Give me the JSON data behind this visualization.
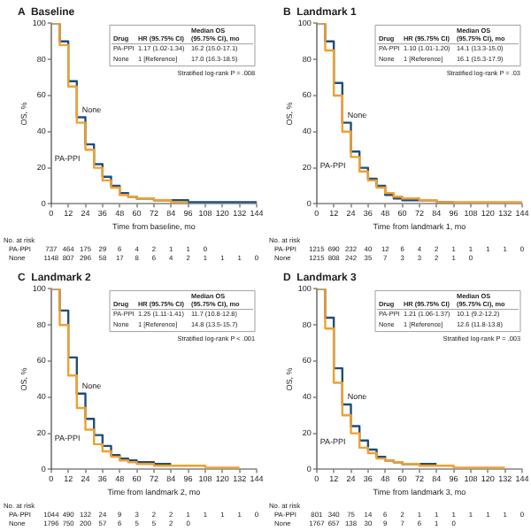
{
  "chart_data": [
    {
      "type": "step",
      "title": "A  Baseline",
      "xlabel": "Time from baseline, mo",
      "ylabel": "OS, %",
      "xlim": [
        0,
        144
      ],
      "xticks": [
        0,
        12,
        24,
        36,
        48,
        60,
        72,
        84,
        96,
        108,
        120,
        132,
        144
      ],
      "ylim": [
        0,
        100
      ],
      "yticks": [
        0,
        20,
        40,
        60,
        80,
        100
      ],
      "legend": false,
      "grid": false,
      "series": [
        {
          "name": "PA-PPI",
          "color": "#f0a030",
          "x": [
            0,
            6,
            12,
            18,
            24,
            30,
            36,
            42,
            48,
            54,
            60,
            72,
            84,
            96
          ],
          "values": [
            100,
            88,
            65,
            45,
            30,
            20,
            13,
            9,
            5,
            4,
            3,
            2,
            1,
            1
          ]
        },
        {
          "name": "None",
          "color": "#1f4e79",
          "x": [
            0,
            6,
            12,
            18,
            24,
            30,
            36,
            42,
            48,
            54,
            60,
            72,
            84,
            96,
            108,
            120,
            132,
            144
          ],
          "values": [
            100,
            90,
            68,
            48,
            33,
            22,
            15,
            10,
            6,
            4,
            3,
            2,
            2,
            1,
            1,
            1,
            1,
            1
          ]
        }
      ],
      "annotations": [
        "Drug",
        "HR (95.75% CI)",
        "Median OS (95.75% CI), mo",
        "PA-PPI",
        "1.17 (1.02-1.34)",
        "16.2 (15.0-17.1)",
        "None",
        "1 [Reference]",
        "17.0 (16.3-18.5)",
        "Stratified log-rank P = .008",
        "No. at risk",
        "PA-PPI",
        "737 464 175 29 6 4 2 1 1 0",
        "None",
        "1148 807 296 58 17 8 6 4 2 1 1 1 0"
      ]
    },
    {
      "type": "step",
      "title": "B  Landmark 1",
      "xlabel": "Time from landmark 1, mo",
      "ylabel": "OS, %",
      "xlim": [
        0,
        144
      ],
      "xticks": [
        0,
        12,
        24,
        36,
        48,
        60,
        72,
        84,
        96,
        108,
        120,
        132,
        144
      ],
      "ylim": [
        0,
        100
      ],
      "yticks": [
        0,
        20,
        40,
        60,
        80,
        100
      ],
      "legend": false,
      "grid": false,
      "series": [
        {
          "name": "PA-PPI",
          "color": "#f0a030",
          "x": [
            0,
            6,
            12,
            18,
            24,
            30,
            36,
            42,
            48,
            54,
            60,
            72,
            84,
            96,
            108,
            120,
            132,
            144
          ],
          "values": [
            100,
            85,
            60,
            40,
            26,
            18,
            13,
            9,
            6,
            4,
            3,
            2,
            1,
            1,
            1,
            1,
            1,
            1
          ]
        },
        {
          "name": "None",
          "color": "#1f4e79",
          "x": [
            0,
            6,
            12,
            18,
            24,
            30,
            36,
            42,
            48,
            54,
            60,
            72,
            84,
            96
          ],
          "values": [
            100,
            90,
            67,
            45,
            29,
            20,
            14,
            10,
            5,
            3,
            2,
            2,
            1,
            1
          ]
        }
      ],
      "annotations": [
        "Drug",
        "HR (95.75% CI)",
        "Median OS (95.75% CI), mo",
        "PA-PPI",
        "1.10 (1.01-1.20)",
        "14.1 (13.3-15.0)",
        "None",
        "1 [Reference]",
        "16.1 (15.3-17.9)",
        "Stratified log-rank P = .03",
        "No. at risk",
        "PA-PPI",
        "1215 690 232 40 12 6 4 2 1 1 1 1 0",
        "None",
        "1215 808 242 35 7 3 3 2 1 0"
      ]
    },
    {
      "type": "step",
      "title": "C  Landmark 2",
      "xlabel": "Time from landmark 2, mo",
      "ylabel": "OS, %",
      "xlim": [
        0,
        144
      ],
      "xticks": [
        0,
        12,
        24,
        36,
        48,
        60,
        72,
        84,
        96,
        108,
        120,
        132,
        144
      ],
      "ylim": [
        0,
        100
      ],
      "yticks": [
        0,
        20,
        40,
        60,
        80,
        100
      ],
      "legend": false,
      "grid": false,
      "series": [
        {
          "name": "PA-PPI",
          "color": "#f0a030",
          "x": [
            0,
            6,
            12,
            18,
            24,
            30,
            36,
            42,
            48,
            54,
            60,
            72,
            84,
            96,
            108,
            120,
            132
          ],
          "values": [
            100,
            80,
            52,
            34,
            22,
            14,
            10,
            7,
            5,
            4,
            3,
            2,
            2,
            2,
            1,
            1,
            1
          ]
        },
        {
          "name": "None",
          "color": "#1f4e79",
          "x": [
            0,
            6,
            12,
            18,
            24,
            30,
            36,
            42,
            48,
            54,
            60,
            72,
            84
          ],
          "values": [
            100,
            88,
            62,
            42,
            28,
            19,
            13,
            8,
            6,
            5,
            4,
            3,
            3
          ]
        }
      ],
      "annotations": [
        "Drug",
        "HR (95.75% CI)",
        "Median OS (95.75% CI), mo",
        "PA-PPI",
        "1.25 (1.11-1.41)",
        "11.7 (10.8-12.8)",
        "None",
        "1 [Reference]",
        "14.8 (13.5-15.7)",
        "Stratified log-rank P < .001",
        "No. at risk",
        "PA-PPI",
        "1044 490 132 24 9 3 2 2 1 1 1 1 0",
        "None",
        "1796 750 200 57 6 5 5 2 0"
      ]
    },
    {
      "type": "step",
      "title": "D  Landmark 3",
      "xlabel": "Time from landmark 3, mo",
      "ylabel": "OS, %",
      "xlim": [
        0,
        144
      ],
      "xticks": [
        0,
        12,
        24,
        36,
        48,
        60,
        72,
        84,
        96,
        108,
        120,
        132,
        144
      ],
      "ylim": [
        0,
        100
      ],
      "yticks": [
        0,
        20,
        40,
        60,
        80,
        100
      ],
      "legend": false,
      "grid": false,
      "series": [
        {
          "name": "PA-PPI",
          "color": "#f0a030",
          "x": [
            0,
            6,
            12,
            18,
            24,
            30,
            36,
            42,
            48,
            54,
            60,
            72,
            84,
            96,
            108,
            120,
            132
          ],
          "values": [
            100,
            78,
            48,
            30,
            20,
            12,
            9,
            6,
            5,
            4,
            3,
            2,
            2,
            1,
            1,
            1,
            1
          ]
        },
        {
          "name": "None",
          "color": "#1f4e79",
          "x": [
            0,
            6,
            12,
            18,
            24,
            30,
            36,
            42,
            48,
            54,
            60,
            72,
            84
          ],
          "values": [
            100,
            84,
            56,
            36,
            24,
            16,
            11,
            7,
            5,
            4,
            3,
            3,
            3
          ]
        }
      ],
      "annotations": [
        "Drug",
        "HR (95.75% CI)",
        "Median OS (95.75% CI), mo",
        "PA-PPI",
        "1.21 (1.06-1.37)",
        "10.1 (9.2-12.2)",
        "None",
        "1 [Reference]",
        "12.6 (11.8-13.8)",
        "Stratified log-rank P = .003",
        "No. at risk",
        "PA-PPI",
        "801 340 75 14 6 2 1 1 1 1 1 1 0",
        "None",
        "1767 657 138 30 9 7 6 1 0"
      ]
    }
  ]
}
